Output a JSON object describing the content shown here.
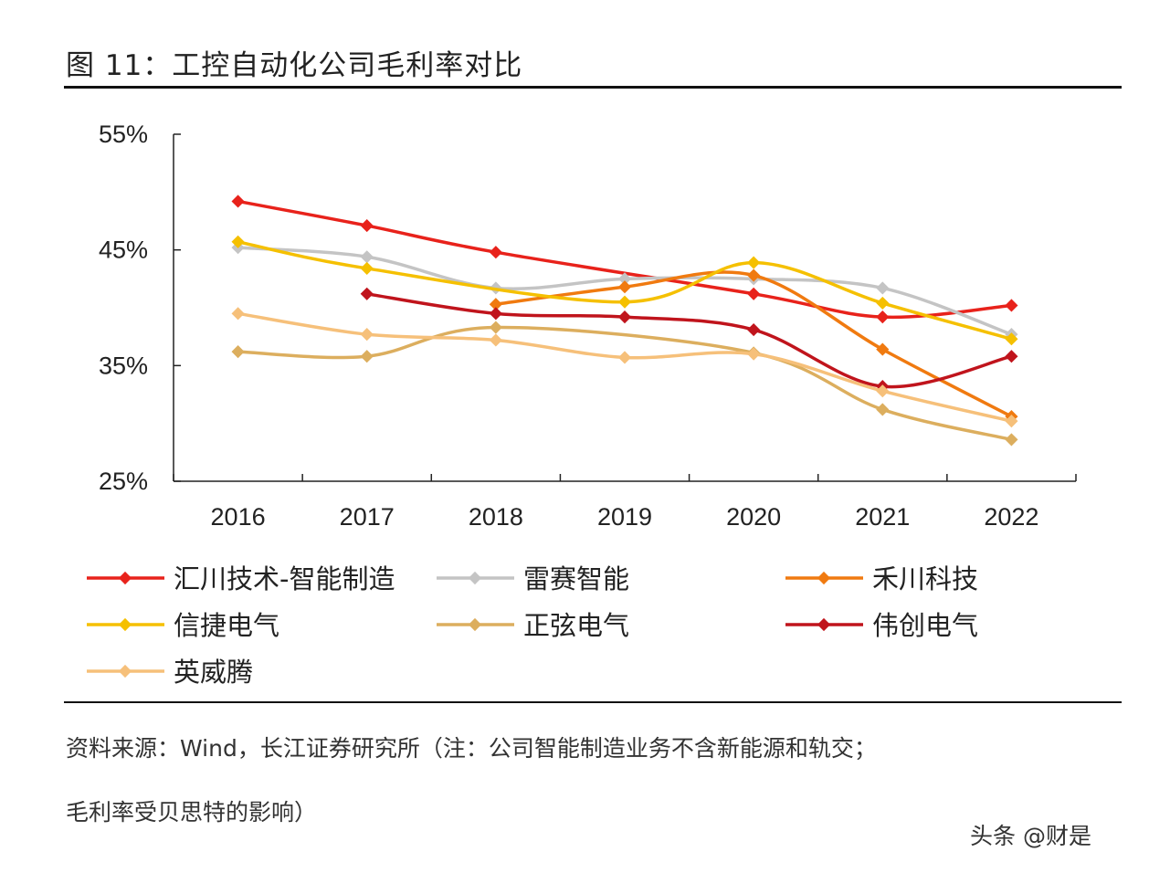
{
  "title": "图  11：工控自动化公司毛利率对比",
  "source_line1": "资料来源：Wind，长江证券研究所（注：公司智能制造业务不含新能源和轨交；",
  "source_line2": "毛利率受贝思特的影响）",
  "watermark": "头条 @财是",
  "chart_data": {
    "type": "line",
    "x": [
      "2016",
      "2017",
      "2018",
      "2019",
      "2020",
      "2021",
      "2022"
    ],
    "ylim": [
      25,
      55
    ],
    "yticks": [
      "25%",
      "35%",
      "45%",
      "55%"
    ],
    "grid": false,
    "legend_position": "bottom",
    "series": [
      {
        "name": "汇川技术-智能制造",
        "color": "#e8221b",
        "values": [
          49.2,
          47.1,
          44.8,
          null,
          41.2,
          39.2,
          40.2
        ]
      },
      {
        "name": "雷赛智能",
        "color": "#c4c4c4",
        "values": [
          45.2,
          44.4,
          41.7,
          42.5,
          42.5,
          41.7,
          37.7
        ]
      },
      {
        "name": "禾川科技",
        "color": "#f07a10",
        "values": [
          null,
          null,
          40.3,
          41.8,
          42.8,
          36.4,
          30.6
        ]
      },
      {
        "name": "信捷电气",
        "color": "#f5c000",
        "values": [
          45.7,
          43.4,
          null,
          40.5,
          43.9,
          40.4,
          37.3
        ]
      },
      {
        "name": "正弦电气",
        "color": "#dcae5e",
        "values": [
          36.2,
          35.8,
          38.3,
          null,
          36.1,
          31.2,
          28.6
        ]
      },
      {
        "name": "伟创电气",
        "color": "#c0141c",
        "values": [
          null,
          41.2,
          39.5,
          39.2,
          38.1,
          33.2,
          35.8
        ]
      },
      {
        "name": "英威腾",
        "color": "#f6c07a",
        "values": [
          39.5,
          37.7,
          37.2,
          35.7,
          36.0,
          32.8,
          30.2
        ]
      }
    ]
  }
}
